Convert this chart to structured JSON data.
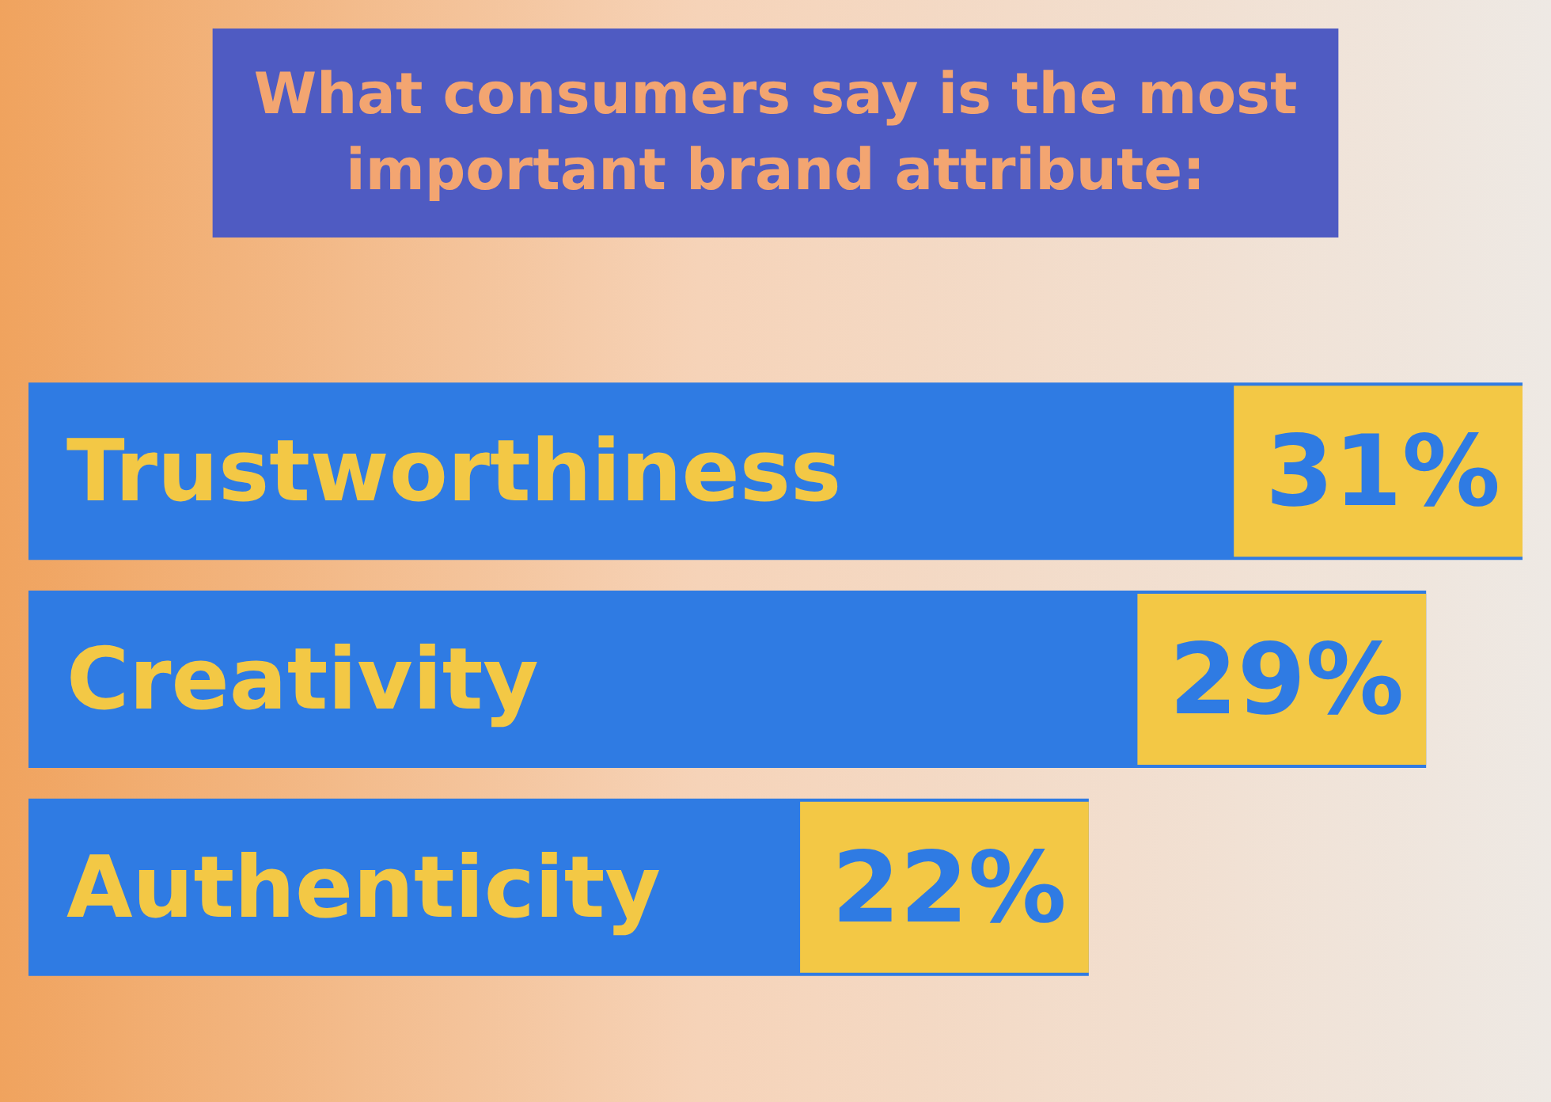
{
  "chart_data": {
    "type": "bar",
    "title": "What consumers say is the most\nimportant brand attribute:",
    "orientation": "horizontal",
    "categories": [
      "Trustworthiness",
      "Creativity",
      "Authenticity"
    ],
    "values": [
      31,
      29,
      22
    ],
    "value_labels": [
      "31%",
      "29%",
      "22%"
    ],
    "color": "#2f7be3"
  }
}
